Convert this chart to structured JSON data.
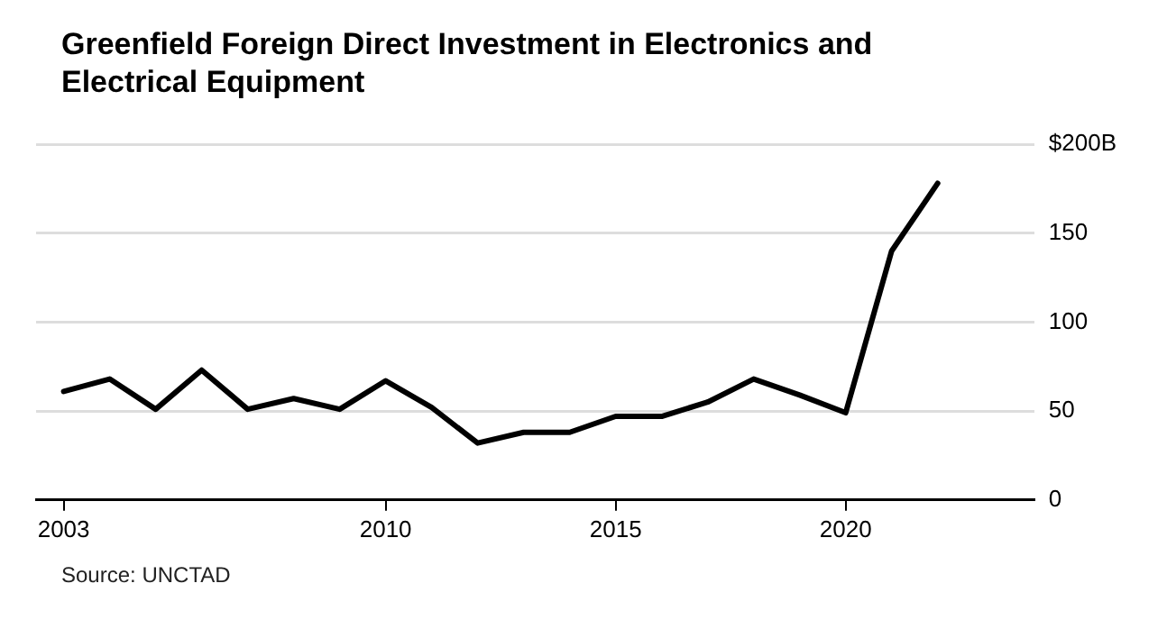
{
  "chart_data": {
    "type": "line",
    "title": "Greenfield Foreign Direct Investment in Electronics and Electrical Equipment",
    "x": [
      2003,
      2004,
      2005,
      2006,
      2007,
      2008,
      2009,
      2010,
      2011,
      2012,
      2013,
      2014,
      2015,
      2016,
      2017,
      2018,
      2019,
      2020,
      2021,
      2022
    ],
    "series": [
      {
        "color": "#000000",
        "values": [
          61,
          68,
          51,
          73,
          51,
          57,
          51,
          67,
          52,
          32,
          38,
          38,
          47,
          47,
          55,
          68,
          59,
          49,
          140,
          178
        ]
      }
    ],
    "xlim": [
      2002.4,
      2024.1
    ],
    "xticks": [
      2003,
      2010,
      2015,
      2020
    ],
    "ylim": [
      0,
      200
    ],
    "yticks": [
      0,
      50,
      100,
      150,
      {
        "value": 200,
        "label": "$200B"
      }
    ],
    "grid": "y",
    "legend": false,
    "marker": "none",
    "line_style": "solid",
    "annotations": [
      "Source: UNCTAD"
    ]
  }
}
